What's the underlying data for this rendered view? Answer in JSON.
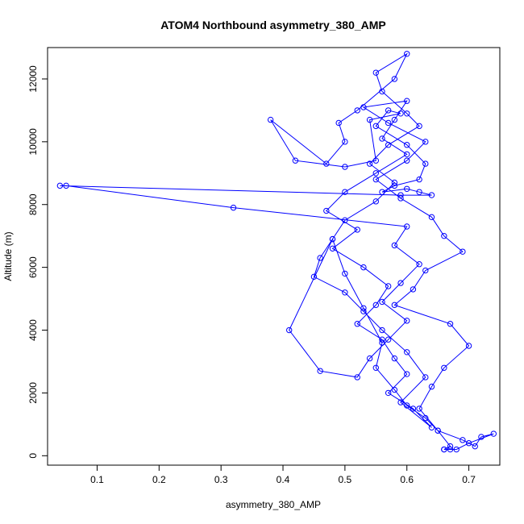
{
  "chart_data": {
    "type": "line",
    "title": "ATOM4 Northbound asymmetry_380_AMP",
    "xlabel": "asymmetry_380_AMP",
    "ylabel": "Altitude (m)",
    "xlim": [
      0.02,
      0.75
    ],
    "ylim": [
      -300,
      13000
    ],
    "x_ticks": [
      0.1,
      0.2,
      0.3,
      0.4,
      0.5,
      0.6,
      0.7
    ],
    "y_ticks": [
      0,
      2000,
      4000,
      6000,
      8000,
      10000,
      12000
    ],
    "x_tick_labels": [
      "0.1",
      "0.2",
      "0.3",
      "0.4",
      "0.5",
      "0.6",
      "0.7"
    ],
    "y_tick_labels": [
      "0",
      "2000",
      "4000",
      "6000",
      "8000",
      "10000",
      "12000"
    ],
    "grid": false,
    "legend": "none",
    "line_color": "#0000ff",
    "marker": "open-circle",
    "series": [
      {
        "x": [
          0.66,
          0.67,
          0.65,
          0.62,
          0.64,
          0.66,
          0.7,
          0.67,
          0.58,
          0.61,
          0.63,
          0.69,
          0.66,
          0.64,
          0.59,
          0.55,
          0.6,
          0.63,
          0.57,
          0.53,
          0.6,
          0.58,
          0.56,
          0.6,
          0.55,
          0.5,
          0.47,
          0.52,
          0.48,
          0.53,
          0.57,
          0.55,
          0.52,
          0.56,
          0.58,
          0.6,
          0.57,
          0.61,
          0.64,
          0.59,
          0.63,
          0.6,
          0.56,
          0.53,
          0.5,
          0.45,
          0.46,
          0.48,
          0.5,
          0.55,
          0.58,
          0.54,
          0.57,
          0.62,
          0.6,
          0.56,
          0.55,
          0.6,
          0.58,
          0.52,
          0.49,
          0.5,
          0.47,
          0.38,
          0.42,
          0.5,
          0.55,
          0.54,
          0.59,
          0.57,
          0.55,
          0.6,
          0.63,
          0.62,
          0.58,
          0.56,
          0.6,
          0.62,
          0.64,
          0.59,
          0.04,
          0.05,
          0.32,
          0.6,
          0.58,
          0.62,
          0.59,
          0.56,
          0.6,
          0.57,
          0.54,
          0.52,
          0.46,
          0.41,
          0.48,
          0.5,
          0.53,
          0.56,
          0.55,
          0.58,
          0.6,
          0.63,
          0.65,
          0.69,
          0.71,
          0.72,
          0.74,
          0.7,
          0.68,
          0.67,
          0.66
        ],
        "y": [
          200,
          300,
          800,
          1500,
          2200,
          2800,
          3500,
          4200,
          4800,
          5300,
          5900,
          6500,
          7000,
          7600,
          8200,
          8800,
          9400,
          10000,
          10600,
          11100,
          11300,
          10700,
          10100,
          9600,
          9000,
          8400,
          7800,
          7200,
          6600,
          6000,
          5400,
          4800,
          4200,
          3700,
          3100,
          2600,
          2000,
          1500,
          900,
          1700,
          2500,
          3300,
          4000,
          4600,
          5200,
          5700,
          6300,
          6900,
          7500,
          8100,
          8700,
          9300,
          9900,
          10500,
          10900,
          11600,
          12200,
          12800,
          12000,
          11000,
          10600,
          10000,
          9300,
          10700,
          9400,
          9200,
          9400,
          10700,
          10900,
          11000,
          10500,
          9900,
          9300,
          8800,
          8600,
          8400,
          8500,
          8400,
          8300,
          8300,
          8600,
          8600,
          7900,
          7300,
          6700,
          6100,
          5500,
          4900,
          4300,
          3700,
          3100,
          2500,
          2700,
          4000,
          6900,
          5800,
          4700,
          3600,
          2800,
          2100,
          1600,
          1200,
          800,
          500,
          300,
          600,
          700,
          400,
          200,
          200,
          200
        ]
      }
    ]
  }
}
